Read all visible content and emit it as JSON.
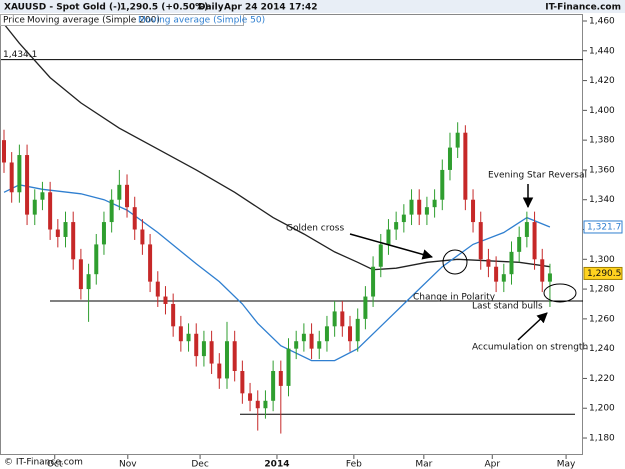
{
  "chart_data": {
    "type": "candlestick",
    "header": {
      "symbol": "XAUUSD - Spot Gold (-)",
      "last": "1,290.5 (+0.50%)",
      "period": "Daily",
      "timestamp": "Apr 24 2014 17:42",
      "brand": "IT-Finance.com"
    },
    "footer": "© IT-Finance.com",
    "xlim": [
      -0.52,
      75.3
    ],
    "xticks": [
      {
        "value": 6.6,
        "label": "Oct"
      },
      {
        "value": 16.1,
        "label": "Nov"
      },
      {
        "value": 25.5,
        "label": "Dec"
      },
      {
        "value": 35.5,
        "label": "2014"
      },
      {
        "value": 45.5,
        "label": "Feb"
      },
      {
        "value": 54.6,
        "label": "Mar"
      },
      {
        "value": 63.5,
        "label": "Apr"
      },
      {
        "value": 73.1,
        "label": "May"
      }
    ],
    "ylim": [
      1168.6,
      1464.7
    ],
    "yticks": [
      {
        "value": 1180,
        "label": "1,180"
      },
      {
        "value": 1200,
        "label": "1,200"
      },
      {
        "value": 1220,
        "label": "1,220"
      },
      {
        "value": 1240,
        "label": "1,240"
      },
      {
        "value": 1260,
        "label": "1,260"
      },
      {
        "value": 1280,
        "label": "1,280"
      },
      {
        "value": 1300,
        "label": "1,300"
      },
      {
        "value": 1320,
        "label": "1,320"
      },
      {
        "value": 1340,
        "label": "1,340"
      },
      {
        "value": 1360,
        "label": "1,360"
      },
      {
        "value": 1380,
        "label": "1,380"
      },
      {
        "value": 1400,
        "label": "1,400"
      },
      {
        "value": 1420,
        "label": "1,420"
      },
      {
        "value": 1440,
        "label": "1,440"
      },
      {
        "value": 1460,
        "label": "1,460"
      }
    ],
    "series": [
      {
        "name": "Price",
        "up_color": "#2f9e2f",
        "down_color": "#c62828",
        "last_label": "1,290.5",
        "label_color": "#ffd21f",
        "open": [
          1380,
          1365,
          1345,
          1370,
          1330,
          1340,
          1345,
          1320,
          1315,
          1325,
          1300,
          1280,
          1290,
          1310,
          1325,
          1340,
          1350,
          1335,
          1320,
          1310,
          1285,
          1275,
          1270,
          1255,
          1245,
          1250,
          1235,
          1245,
          1230,
          1220,
          1245,
          1225,
          1210,
          1205,
          1200,
          1205,
          1225,
          1215,
          1240,
          1245,
          1250,
          1240,
          1245,
          1255,
          1265,
          1255,
          1245,
          1260,
          1275,
          1295,
          1310,
          1320,
          1325,
          1330,
          1340,
          1330,
          1335,
          1340,
          1360,
          1375,
          1385,
          1340,
          1325,
          1300,
          1295,
          1285,
          1290,
          1305,
          1315,
          1325,
          1300,
          1285
        ],
        "high": [
          1387,
          1372,
          1377,
          1377,
          1347,
          1352,
          1352,
          1327,
          1332,
          1332,
          1307,
          1297,
          1317,
          1332,
          1347,
          1360,
          1357,
          1342,
          1327,
          1317,
          1292,
          1282,
          1277,
          1262,
          1257,
          1257,
          1252,
          1252,
          1237,
          1258,
          1252,
          1232,
          1217,
          1212,
          1212,
          1232,
          1232,
          1247,
          1252,
          1257,
          1257,
          1252,
          1262,
          1272,
          1272,
          1262,
          1267,
          1282,
          1302,
          1317,
          1327,
          1332,
          1337,
          1347,
          1347,
          1342,
          1347,
          1367,
          1385,
          1392,
          1390,
          1347,
          1332,
          1307,
          1302,
          1297,
          1312,
          1322,
          1332,
          1332,
          1307,
          1297
        ],
        "low": [
          1358,
          1338,
          1338,
          1323,
          1323,
          1333,
          1313,
          1308,
          1308,
          1293,
          1273,
          1258,
          1283,
          1303,
          1318,
          1333,
          1328,
          1313,
          1303,
          1278,
          1268,
          1263,
          1248,
          1238,
          1238,
          1228,
          1228,
          1223,
          1213,
          1213,
          1218,
          1203,
          1198,
          1185,
          1193,
          1198,
          1183,
          1208,
          1233,
          1238,
          1233,
          1233,
          1238,
          1248,
          1248,
          1238,
          1238,
          1253,
          1268,
          1288,
          1303,
          1313,
          1318,
          1323,
          1323,
          1323,
          1328,
          1333,
          1353,
          1368,
          1333,
          1318,
          1293,
          1288,
          1278,
          1278,
          1283,
          1298,
          1308,
          1293,
          1278,
          1268
        ],
        "close": [
          1365,
          1345,
          1370,
          1330,
          1340,
          1345,
          1320,
          1315,
          1325,
          1300,
          1280,
          1290,
          1310,
          1325,
          1340,
          1350,
          1335,
          1320,
          1310,
          1285,
          1275,
          1270,
          1255,
          1245,
          1250,
          1235,
          1245,
          1230,
          1220,
          1245,
          1225,
          1210,
          1205,
          1200,
          1205,
          1225,
          1215,
          1240,
          1245,
          1250,
          1240,
          1245,
          1255,
          1265,
          1255,
          1245,
          1260,
          1275,
          1295,
          1310,
          1320,
          1325,
          1330,
          1340,
          1330,
          1335,
          1340,
          1360,
          1375,
          1385,
          1340,
          1325,
          1300,
          1295,
          1285,
          1290,
          1305,
          1315,
          1325,
          1300,
          1285,
          1290.5
        ]
      },
      {
        "name": "Moving average (Simple 200)",
        "color": "#222222",
        "x": [
          0,
          2,
          6,
          10,
          15,
          20,
          25,
          30,
          35,
          39,
          43,
          46,
          48,
          51,
          55,
          59,
          63,
          67,
          71
        ],
        "values": [
          1458,
          1445,
          1422,
          1405,
          1388,
          1374,
          1360,
          1345,
          1328,
          1317,
          1305,
          1298,
          1293,
          1294,
          1298,
          1300,
          1299,
          1298,
          1295
        ]
      },
      {
        "name": "Moving average (Simple 50)",
        "color": "#2f7fd0",
        "last_label": "1,321.7",
        "x": [
          0,
          2,
          5,
          10,
          13,
          16,
          20,
          25,
          28,
          31,
          33,
          36,
          40,
          43,
          46,
          49,
          53,
          57,
          61,
          65,
          68,
          71
        ],
        "values": [
          1345,
          1350,
          1347,
          1344,
          1340,
          1333,
          1318,
          1297,
          1285,
          1270,
          1257,
          1242,
          1232,
          1232,
          1240,
          1255,
          1275,
          1295,
          1310,
          1318,
          1328,
          1321.7
        ]
      }
    ],
    "levels": [
      {
        "value": 1434.1,
        "label": "1,434.1"
      },
      {
        "value": 1272
      },
      {
        "value": 1196
      }
    ],
    "annotations": [
      "Golden cross",
      "Evening Star Reversal",
      "Change in Polarity",
      "Last stand bulls",
      "Accumulation on strength"
    ]
  }
}
